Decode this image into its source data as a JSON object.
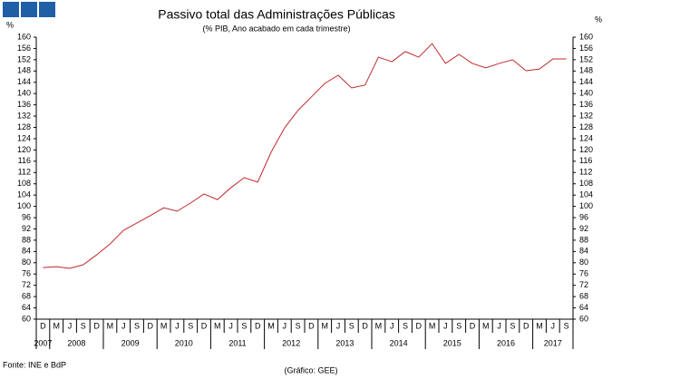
{
  "chart_data": {
    "type": "line",
    "title": "Passivo total das Administrações Públicas",
    "subtitle": "(% PIB, Ano acabado em cada trimestre)",
    "y_label": "%",
    "y2_label": "%",
    "source": "Fonte: INE e BdP",
    "credit": "(Gráfico: GEE)",
    "categories": [
      "D",
      "M",
      "J",
      "S",
      "D",
      "M",
      "J",
      "S",
      "D",
      "M",
      "J",
      "S",
      "D",
      "M",
      "J",
      "S",
      "D",
      "M",
      "J",
      "S",
      "D",
      "M",
      "J",
      "S",
      "D",
      "M",
      "J",
      "S",
      "D",
      "M",
      "J",
      "S",
      "D",
      "M",
      "J",
      "S",
      "D",
      "M",
      "J",
      "S"
    ],
    "years": [
      "2007",
      "2008",
      "2009",
      "2010",
      "2011",
      "2012",
      "2013",
      "2014",
      "2015",
      "2016",
      "2017"
    ],
    "series": [
      {
        "name": "Passivo total",
        "color": "#c0282d",
        "values": [
          78.3,
          78.6,
          78.0,
          79.3,
          82.8,
          86.7,
          91.5,
          94.1,
          96.7,
          99.5,
          98.3,
          101.2,
          104.4,
          102.4,
          106.6,
          110.2,
          108.6,
          119.2,
          127.8,
          134.0,
          138.8,
          143.6,
          146.5,
          142.0,
          143.0,
          152.9,
          151.3,
          154.9,
          152.9,
          157.7,
          150.7,
          153.9,
          150.7,
          149.1,
          150.7,
          152.0,
          148.1,
          148.7,
          152.3,
          152.3
        ]
      }
    ],
    "ylim": [
      60,
      160
    ],
    "yticks": [
      60,
      64,
      68,
      72,
      76,
      80,
      84,
      88,
      92,
      96,
      100,
      104,
      108,
      112,
      116,
      120,
      124,
      128,
      132,
      136,
      140,
      144,
      148,
      152,
      156,
      160
    ],
    "y2lim": [
      60,
      160
    ],
    "y2ticks": [
      60,
      64,
      68,
      72,
      76,
      80,
      84,
      88,
      92,
      96,
      100,
      104,
      108,
      112,
      116,
      120,
      124,
      128,
      132,
      136,
      140,
      144,
      148,
      152,
      156,
      160
    ]
  }
}
